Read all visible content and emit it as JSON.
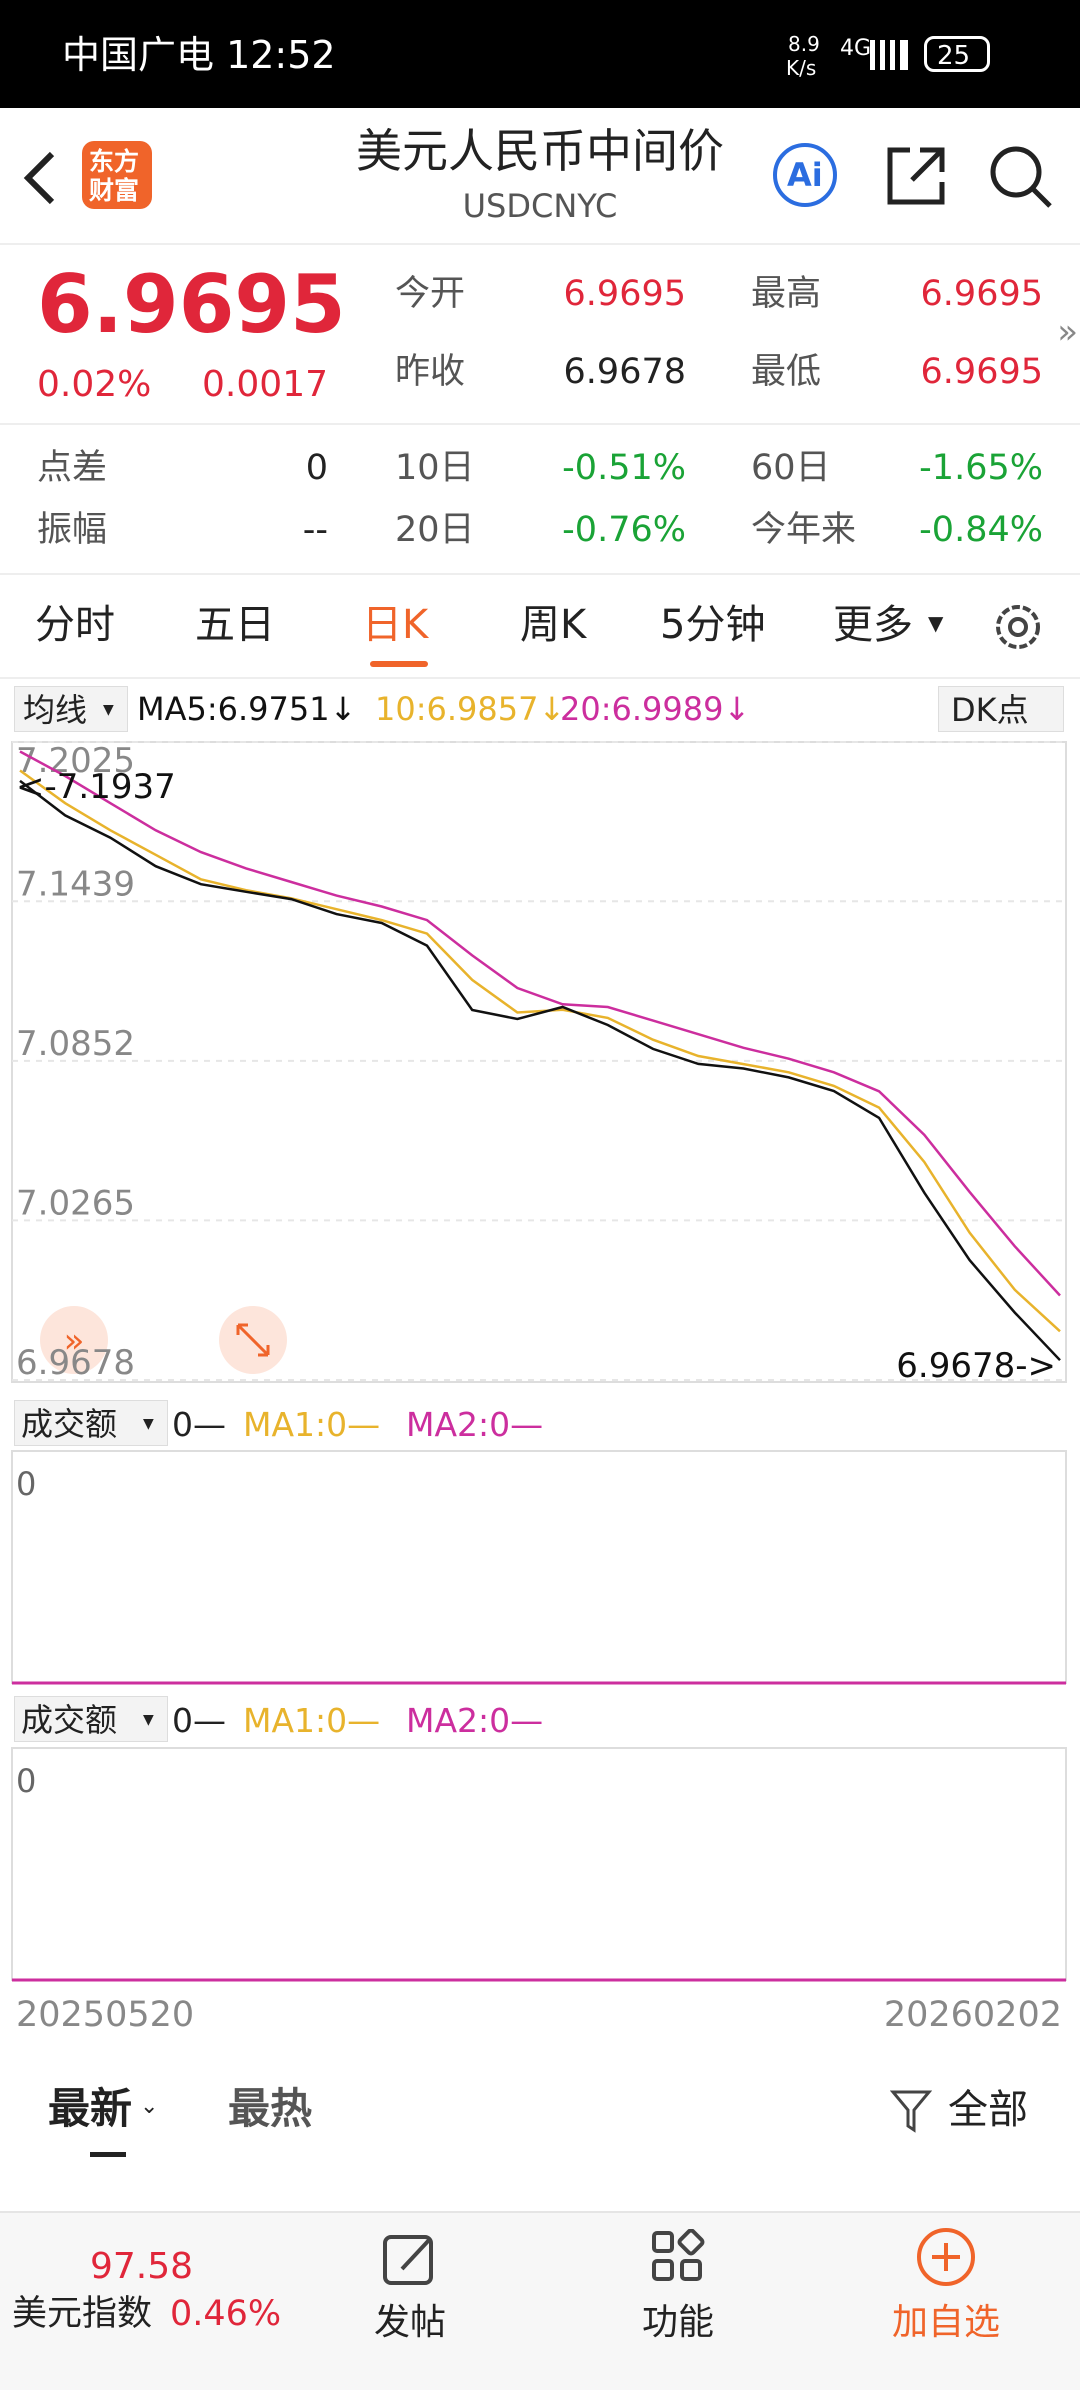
{
  "status_bar": {
    "carrier_time": "中国广电 12:52",
    "speed_value": "8.9",
    "speed_unit": "K/s",
    "network": "4G",
    "battery": "25"
  },
  "header": {
    "logo_top": "东方",
    "logo_bottom": "财富",
    "title": "美元人民币中间价",
    "code": "USDCNYC",
    "ai": "Ai"
  },
  "quote": {
    "price": "6.9695",
    "change_pct": "0.02%",
    "change": "0.0017",
    "open_label": "今开",
    "open": "6.9695",
    "high_label": "最高",
    "high": "6.9695",
    "prev_label": "昨收",
    "prev": "6.9678",
    "low_label": "最低",
    "low": "6.9695",
    "spread_label": "点差",
    "spread": "0",
    "d10_label": "10日",
    "d10": "-0.51%",
    "d60_label": "60日",
    "d60": "-1.65%",
    "amp_label": "振幅",
    "amp": "--",
    "d20_label": "20日",
    "d20": "-0.76%",
    "ytd_label": "今年来",
    "ytd": "-0.84%"
  },
  "tabs": [
    "分时",
    "五日",
    "日K",
    "周K",
    "5分钟",
    "更多"
  ],
  "ma_bar": {
    "selector": "均线",
    "ma5": "MA5:6.9751↓",
    "ma10": "10:6.9857↓",
    "ma20": "20:6.9989↓",
    "dk": "DK点"
  },
  "chart_data": {
    "type": "line",
    "ylim": [
      6.9678,
      7.2025
    ],
    "yticks": [
      7.2025,
      7.1439,
      7.0852,
      7.0265,
      6.9678
    ],
    "max_label": "<-7.1937",
    "min_label": "6.9678->",
    "series": [
      {
        "name": "MA20",
        "color": "#cc2e9e",
        "values": [
          7.199,
          7.19,
          7.18,
          7.17,
          7.162,
          7.156,
          7.151,
          7.146,
          7.142,
          7.137,
          7.124,
          7.112,
          7.106,
          7.105,
          7.1,
          7.095,
          7.09,
          7.086,
          7.081,
          7.074,
          7.058,
          7.037,
          7.017,
          6.9989
        ]
      },
      {
        "name": "MA10",
        "color": "#e8b32c",
        "values": [
          7.192,
          7.18,
          7.17,
          7.161,
          7.152,
          7.148,
          7.145,
          7.141,
          7.137,
          7.132,
          7.115,
          7.103,
          7.104,
          7.101,
          7.093,
          7.087,
          7.084,
          7.081,
          7.076,
          7.068,
          7.048,
          7.022,
          7.001,
          6.9857
        ]
      },
      {
        "name": "MA5",
        "color": "#111111",
        "values": [
          7.1882,
          7.1755,
          7.1673,
          7.1568,
          7.1502,
          7.1474,
          7.1447,
          7.1392,
          7.1359,
          7.1276,
          7.1039,
          7.1006,
          7.105,
          7.0984,
          7.0896,
          7.0841,
          7.0824,
          7.0791,
          7.0741,
          7.0642,
          7.0367,
          7.0119,
          6.9926,
          6.9751
        ]
      }
    ]
  },
  "volume_panels": [
    {
      "selector": "成交额",
      "value": "0—",
      "ma1": "MA1:0—",
      "ma2": "MA2:0—",
      "axis": "0"
    },
    {
      "selector": "成交额",
      "value": "0—",
      "ma1": "MA1:0—",
      "ma2": "MA2:0—",
      "axis": "0"
    }
  ],
  "dates": [
    "20250520",
    "20260202"
  ],
  "feed_tabs": {
    "latest": "最新",
    "hot": "最热",
    "filter": "全部"
  },
  "bottom_nav": {
    "index_value": "97.58",
    "index_name": "美元指数",
    "index_change": "0.46%",
    "post": "发帖",
    "functions": "功能",
    "add": "加自选"
  }
}
